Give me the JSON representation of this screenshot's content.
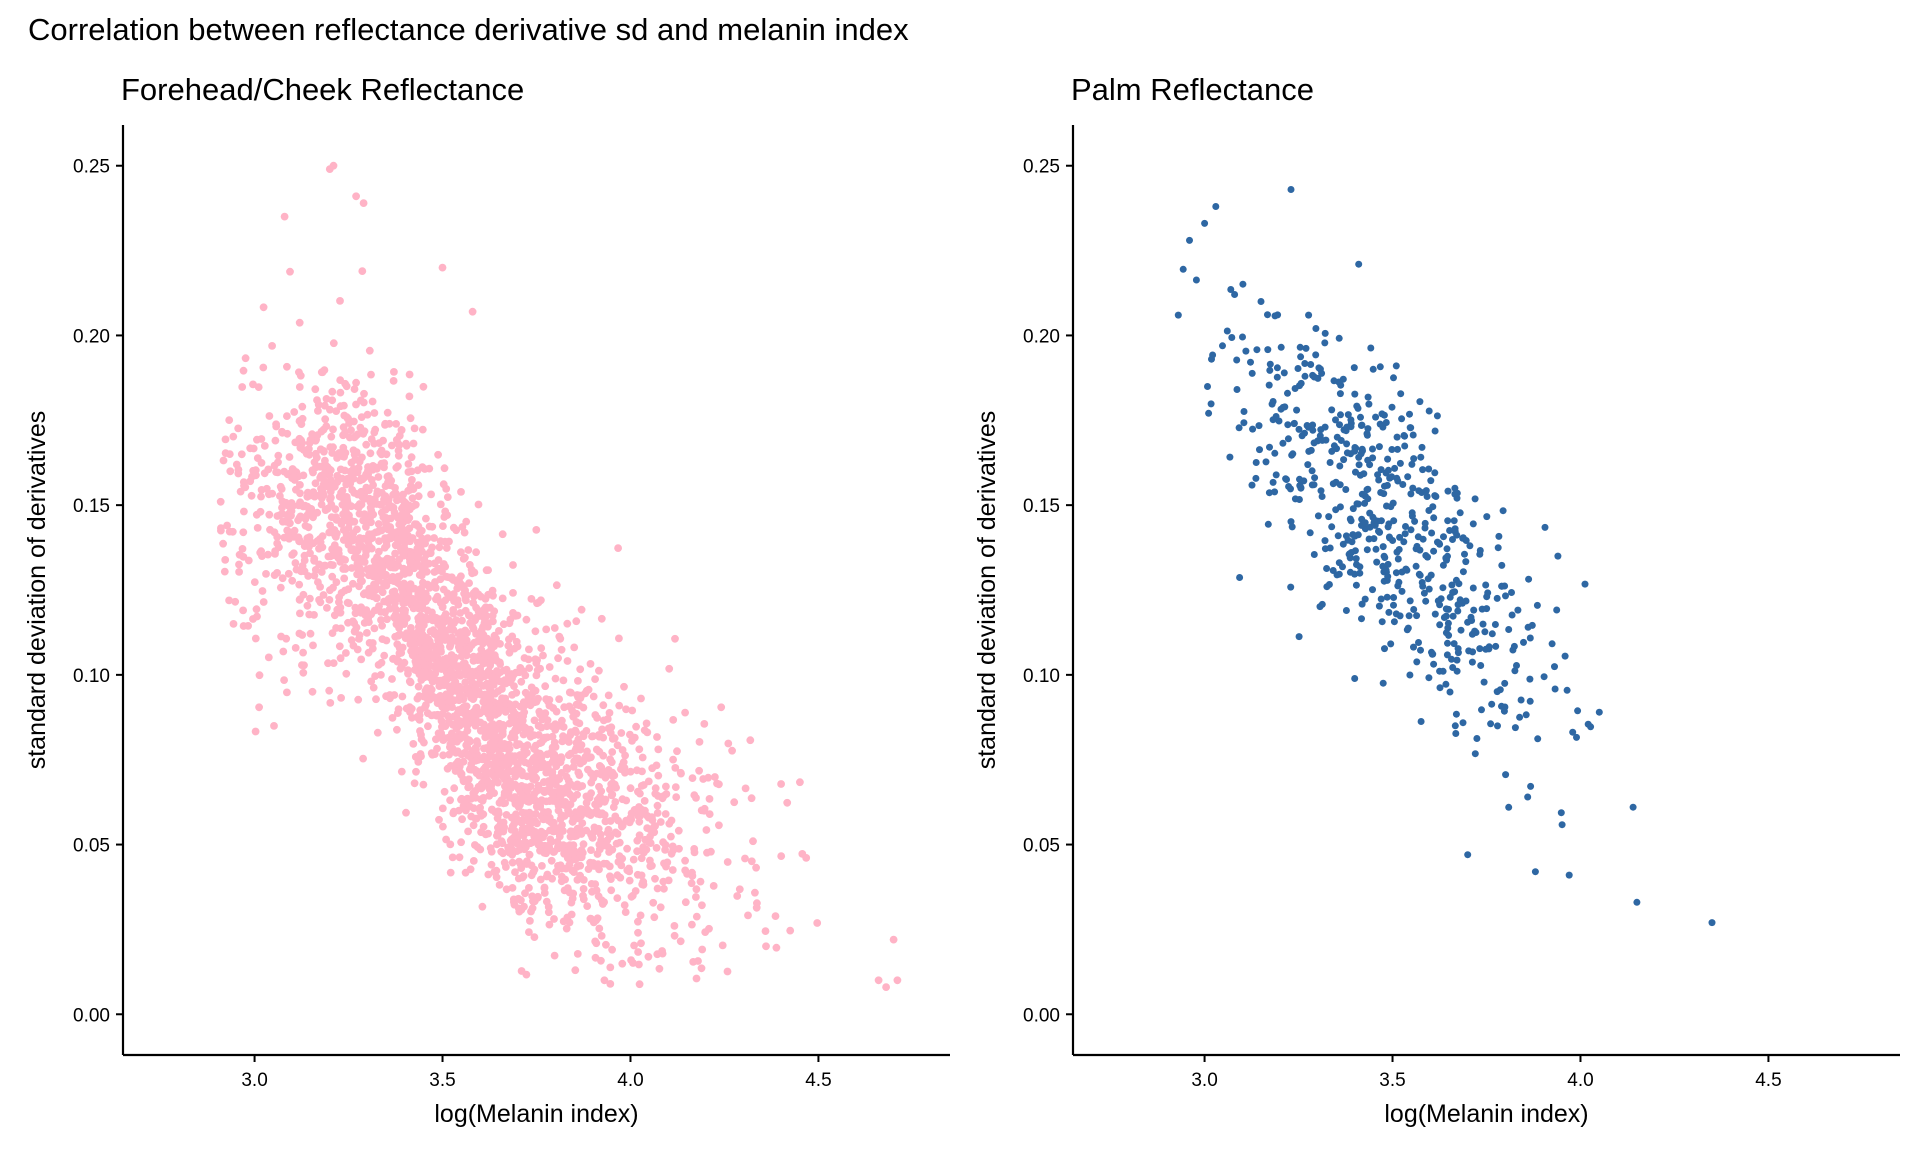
{
  "title": "Correlation between reflectance derivative sd and melanin index",
  "colors": {
    "forehead": "#FFB3C6",
    "palm": "#2E67A3",
    "axis": "#000000"
  },
  "chart_data": [
    {
      "type": "scatter",
      "title": "Forehead/Cheek Reflectance",
      "xlabel": "log(Melanin index)",
      "ylabel": "standard deviation of derivatives",
      "xlim": [
        2.65,
        4.85
      ],
      "ylim": [
        -0.012,
        0.262
      ],
      "xticks": [
        "3.0",
        "3.5",
        "4.0",
        "4.5"
      ],
      "yticks": [
        "0.00",
        "0.05",
        "0.10",
        "0.15",
        "0.20",
        "0.25"
      ],
      "n_points": 3000,
      "trend": [
        [
          3.0,
          0.15
        ],
        [
          3.3,
          0.148
        ],
        [
          3.5,
          0.105
        ],
        [
          3.7,
          0.073
        ],
        [
          4.0,
          0.053
        ],
        [
          4.3,
          0.045
        ],
        [
          4.5,
          0.036
        ],
        [
          4.7,
          0.015
        ]
      ],
      "noise_sd": 0.022,
      "x_distribution": {
        "mean": 3.55,
        "sd": 0.3,
        "range": [
          2.91,
          4.71
        ]
      },
      "series": [
        {
          "name": "Forehead/Cheek",
          "points": [
            [
              2.91,
              0.151
            ],
            [
              2.97,
              0.142
            ],
            [
              3.2,
              0.249
            ],
            [
              3.21,
              0.25
            ],
            [
              3.27,
              0.241
            ],
            [
              3.29,
              0.239
            ],
            [
              3.08,
              0.235
            ],
            [
              3.5,
              0.22
            ],
            [
              4.71,
              0.01
            ],
            [
              4.7,
              0.022
            ],
            [
              4.68,
              0.008
            ],
            [
              4.66,
              0.01
            ],
            [
              4.02,
              0.024
            ],
            [
              3.69,
              0.033
            ],
            [
              3.58,
              0.207
            ]
          ]
        }
      ]
    },
    {
      "type": "scatter",
      "title": "Palm Reflectance",
      "xlabel": "log(Melanin index)",
      "ylabel": "standard deviation of derivatives",
      "xlim": [
        2.65,
        4.85
      ],
      "ylim": [
        -0.012,
        0.262
      ],
      "xticks": [
        "3.0",
        "3.5",
        "4.0",
        "4.5"
      ],
      "yticks": [
        "0.00",
        "0.05",
        "0.10",
        "0.15",
        "0.20",
        "0.25"
      ],
      "n_points": 600,
      "trend": [
        [
          2.95,
          0.2
        ],
        [
          3.2,
          0.175
        ],
        [
          3.5,
          0.145
        ],
        [
          3.8,
          0.11
        ],
        [
          4.1,
          0.07
        ],
        [
          4.35,
          0.027
        ]
      ],
      "noise_sd": 0.02,
      "x_distribution": {
        "mean": 3.5,
        "sd": 0.2,
        "range": [
          2.93,
          4.35
        ]
      },
      "series": [
        {
          "name": "Palm",
          "points": [
            [
              2.93,
              0.206
            ],
            [
              2.96,
              0.228
            ],
            [
              3.0,
              0.233
            ],
            [
              3.03,
              0.238
            ],
            [
              3.23,
              0.243
            ],
            [
              3.41,
              0.221
            ],
            [
              4.35,
              0.027
            ],
            [
              4.15,
              0.033
            ],
            [
              3.88,
              0.042
            ],
            [
              3.97,
              0.041
            ],
            [
              3.7,
              0.047
            ],
            [
              4.14,
              0.061
            ],
            [
              4.05,
              0.089
            ],
            [
              3.94,
              0.135
            ]
          ]
        }
      ]
    }
  ]
}
